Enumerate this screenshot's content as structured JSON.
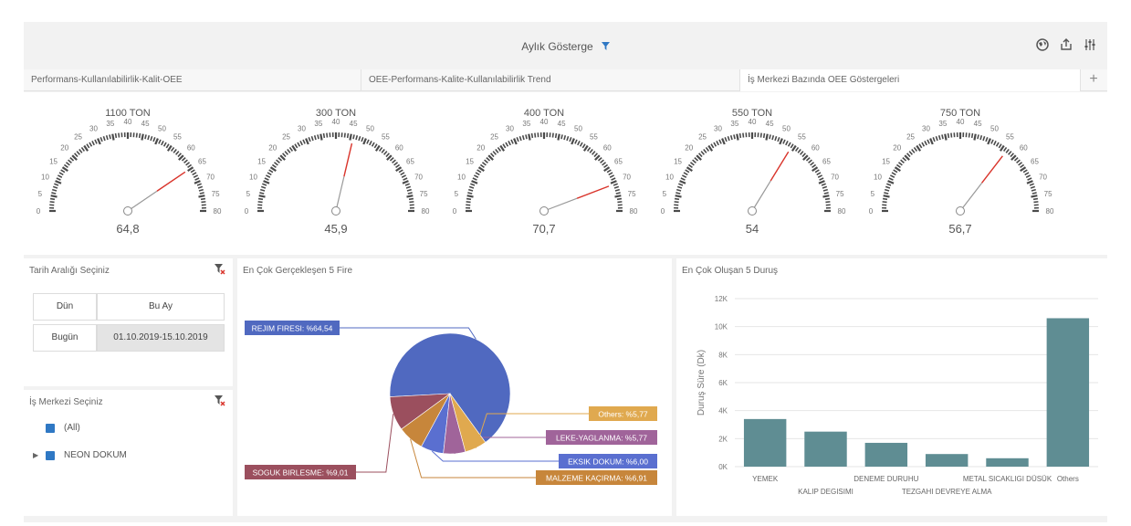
{
  "header": {
    "title": "Aylık Gösterge",
    "filter_icon": "filter-icon",
    "tools": [
      "globe-icon",
      "export-icon",
      "parameters-icon"
    ]
  },
  "tabs": [
    {
      "label": "Performans-Kullanılabilirlik-Kalit-OEE",
      "active": false
    },
    {
      "label": "OEE-Performans-Kalite-Kullanılabilirlik Trend",
      "active": false
    },
    {
      "label": "İş Merkezi Bazında OEE Göstergeleri",
      "active": true
    }
  ],
  "gauges": [
    {
      "title": "1100 TON",
      "value": 64.8,
      "display": "64,8"
    },
    {
      "title": "300 TON",
      "value": 45.9,
      "display": "45,9"
    },
    {
      "title": "400 TON",
      "value": 70.7,
      "display": "70,7"
    },
    {
      "title": "550 TON",
      "value": 54,
      "display": "54"
    },
    {
      "title": "750 TON",
      "value": 56.7,
      "display": "56,7"
    }
  ],
  "gauge_scale": {
    "min": 0,
    "max": 80,
    "ticks": [
      0,
      5,
      10,
      15,
      20,
      25,
      30,
      35,
      40,
      45,
      50,
      55,
      60,
      65,
      70,
      75,
      80
    ]
  },
  "date_panel": {
    "title": "Tarih Aralığı Seçiniz",
    "buttons": {
      "dun": "Dün",
      "bu_ay": "Bu Ay",
      "bugun": "Bugün",
      "range": "01.10.2019-15.10.2019"
    }
  },
  "center_panel": {
    "title": "İş Merkezi Seçiniz",
    "items": [
      "(All)",
      "NEON DOKUM"
    ]
  },
  "pie_panel": {
    "title": "En Çok Gerçekleşen 5 Fire"
  },
  "bar_panel": {
    "title": "En Çok Oluşan 5 Duruş"
  },
  "chart_data": [
    {
      "type": "pie",
      "title": "En Çok Gerçekleşen 5 Fire",
      "slices": [
        {
          "label": "REJIM FIRESI: %64,54",
          "value": 64.54,
          "color": "#5069c0"
        },
        {
          "label": "SOGUK BIRLESME: %9,01",
          "value": 9.01,
          "color": "#9b4f5e"
        },
        {
          "label": "MALZEME KAÇIRMA: %6,91",
          "value": 6.91,
          "color": "#c7863b"
        },
        {
          "label": "EKSIK DOKUM: %6,00",
          "value": 6.0,
          "color": "#5a6fd0"
        },
        {
          "label": "LEKE-YAGLANMA: %5,77",
          "value": 5.77,
          "color": "#a0649a"
        },
        {
          "label": "Others: %5,77",
          "value": 5.77,
          "color": "#e0a94f"
        }
      ]
    },
    {
      "type": "bar",
      "title": "En Çok Oluşan 5 Duruş",
      "ylabel": "Duruş Süre (Dk)",
      "categories": [
        "YEMEK",
        "KALIP DEGISIMI",
        "DENEME DURUHU",
        "TEZGAHI DEVREYE ALMA",
        "METAL SICAKLIGI DÜSÜK",
        "Others"
      ],
      "values": [
        3400,
        2500,
        1700,
        900,
        600,
        10600
      ],
      "ylim": [
        0,
        12000
      ],
      "yticks": [
        "0K",
        "2K",
        "4K",
        "6K",
        "8K",
        "10K",
        "12K"
      ],
      "color": "#5f8d93"
    }
  ]
}
